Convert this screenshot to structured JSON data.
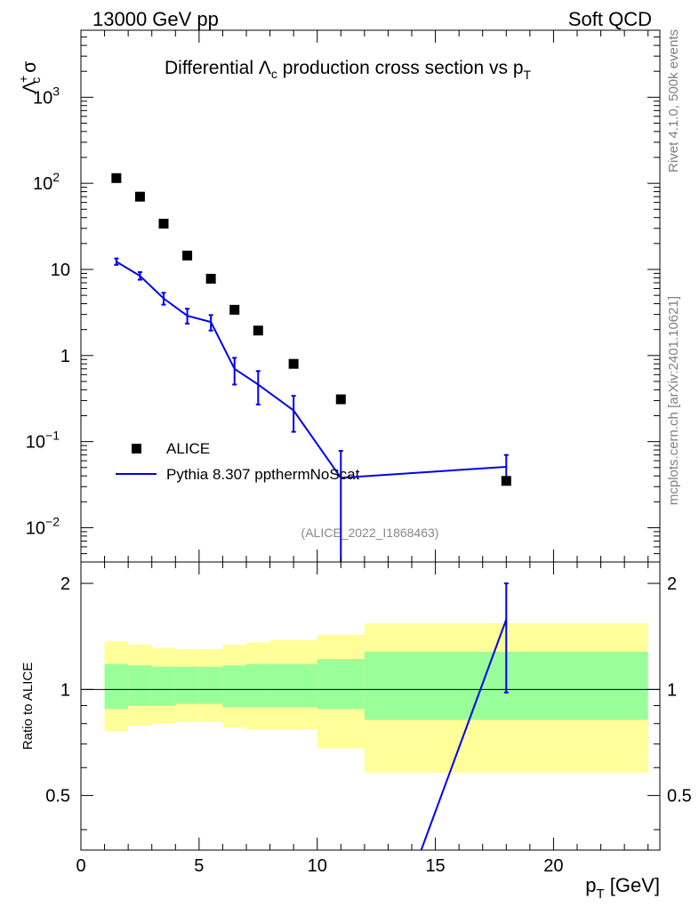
{
  "header": {
    "energy": "13000 GeV pp",
    "category": "Soft QCD"
  },
  "side": {
    "rivet": "Rivet 4.1.0,  500k events",
    "mcplots": "mcplots.cern.ch [arXiv:2401.10621]"
  },
  "main_plot": {
    "title_prefix": "Differential ",
    "title_lambda": "Λ",
    "title_lambda_sub": "c",
    "title_mid": " production cross section vs p",
    "title_sub": "T",
    "ylabel_lambda": "Λ",
    "ylabel_sup": "+",
    "ylabel_sub": "c",
    "ylabel_sigma": "σ",
    "analysis_id": "(ALICE_2022_I1868463)",
    "y_ticks": [
      {
        "v": 1000,
        "base": "10",
        "exp": "3"
      },
      {
        "v": 100,
        "base": "10",
        "exp": "2"
      },
      {
        "v": 10,
        "base": "10",
        "exp": ""
      },
      {
        "v": 1,
        "base": "1",
        "exp": ""
      },
      {
        "v": 0.1,
        "base": "10",
        "exp": "−1"
      },
      {
        "v": 0.01,
        "base": "10",
        "exp": "−2"
      }
    ]
  },
  "legend": {
    "data_label": "ALICE",
    "mc_label": "Pythia 8.307 ppthermNoScat"
  },
  "ratio_plot": {
    "ylabel": "Ratio to ALICE",
    "y_ticks": [
      "2",
      "1",
      "0.5"
    ]
  },
  "xaxis": {
    "label_p": "p",
    "label_sub": "T",
    "label_unit": " [GeV]",
    "ticks": [
      "0",
      "5",
      "10",
      "15",
      "20"
    ]
  },
  "chart_data": {
    "type": "scatter",
    "title": "Differential Λc production cross section vs pT",
    "xlabel": "pT [GeV]",
    "ylabel": "Λc+ σ",
    "xlim": [
      0,
      24.5
    ],
    "ylim": [
      0.004,
      6000
    ],
    "yscale": "log",
    "bins": [
      [
        1,
        2
      ],
      [
        2,
        3
      ],
      [
        3,
        4
      ],
      [
        4,
        5
      ],
      [
        5,
        6
      ],
      [
        6,
        7
      ],
      [
        7,
        8
      ],
      [
        8,
        10
      ],
      [
        10,
        12
      ],
      [
        12,
        24
      ]
    ],
    "series": [
      {
        "name": "ALICE",
        "style": "markers",
        "x": [
          1.5,
          2.5,
          3.5,
          4.5,
          5.5,
          6.5,
          7.5,
          9,
          11,
          18
        ],
        "values": [
          115,
          70,
          34,
          14.5,
          7.8,
          3.4,
          1.95,
          0.8,
          0.31,
          0.035
        ]
      },
      {
        "name": "Pythia 8.307 ppthermNoScat",
        "style": "line",
        "color": "#0000ee",
        "x": [
          1.5,
          2.5,
          3.5,
          4.5,
          5.5,
          6.5,
          7.5,
          9,
          11,
          18
        ],
        "values": [
          12.3,
          8.4,
          4.6,
          2.9,
          2.45,
          0.7,
          0.46,
          0.23,
          0.038,
          0.051
        ],
        "err_low": [
          1.0,
          0.8,
          0.7,
          0.55,
          0.5,
          0.24,
          0.19,
          0.1,
          0.038,
          0.013
        ],
        "err_high": [
          1.1,
          0.9,
          0.75,
          0.6,
          0.5,
          0.24,
          0.2,
          0.11,
          0.04,
          0.019
        ]
      }
    ],
    "ratio": {
      "ylabel": "Ratio to ALICE",
      "ylim": [
        0.35,
        2.3
      ],
      "yscale": "log",
      "reference_line": 1,
      "band_colors": {
        "stat": "#99ff99",
        "syst": "#ffff99"
      },
      "inner_band": [
        [
          0.88,
          1.18
        ],
        [
          0.9,
          1.17
        ],
        [
          0.9,
          1.16
        ],
        [
          0.91,
          1.16
        ],
        [
          0.91,
          1.16
        ],
        [
          0.89,
          1.17
        ],
        [
          0.89,
          1.18
        ],
        [
          0.89,
          1.18
        ],
        [
          0.88,
          1.22
        ],
        [
          0.82,
          1.28
        ]
      ],
      "outer_band": [
        [
          0.76,
          1.37
        ],
        [
          0.79,
          1.34
        ],
        [
          0.8,
          1.31
        ],
        [
          0.81,
          1.3
        ],
        [
          0.81,
          1.3
        ],
        [
          0.78,
          1.34
        ],
        [
          0.77,
          1.36
        ],
        [
          0.77,
          1.38
        ],
        [
          0.68,
          1.43
        ],
        [
          0.58,
          1.54
        ]
      ],
      "mc_x": [
        14.4,
        18
      ],
      "mc_values": [
        0.35,
        1.58
      ],
      "mc_err": [
        [
          0,
          0
        ],
        [
          0.6,
          0.42
        ]
      ]
    }
  }
}
